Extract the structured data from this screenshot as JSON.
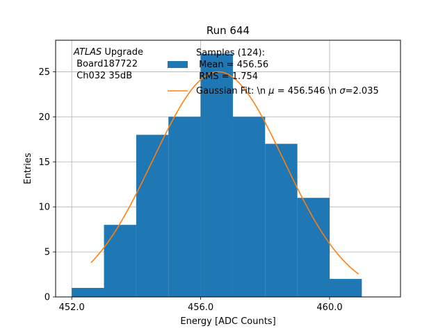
{
  "chart_data": {
    "type": "bar",
    "title": "Run 644",
    "xlabel": "Energy [ADC Counts]",
    "ylabel": "Entries",
    "xlim": [
      451.5,
      462.2
    ],
    "ylim": [
      0,
      28.5
    ],
    "grid": true,
    "xticks": [
      452.0,
      456.0,
      460.0
    ],
    "xtick_labels": [
      "452.0",
      "456.0",
      "460.0"
    ],
    "yticks": [
      0,
      5,
      10,
      15,
      20,
      25
    ],
    "ytick_labels": [
      "0",
      "5",
      "10",
      "15",
      "20",
      "25"
    ],
    "bin_edges": [
      452,
      453,
      454,
      455,
      456,
      457,
      458,
      459,
      460,
      461
    ],
    "values": [
      1,
      8,
      18,
      20,
      27,
      20,
      17,
      11,
      2
    ],
    "hist_color": "#1f77b4",
    "gaussian": {
      "mu": 456.546,
      "sigma": 2.035,
      "amplitude": 25.0,
      "x_range": [
        452.6,
        460.9
      ],
      "color": "#ff7f0e"
    },
    "annotation": {
      "line1_italic": "ATLAS",
      "line1_rest": " Upgrade",
      "line2": " Board187722",
      "line3": " Ch032 35dB"
    },
    "legend": {
      "placement": "top-right",
      "samples_line1": "Samples (124):",
      "samples_line2": " Mean = 456.56",
      "samples_line3": " RMS = 1.754",
      "fit_label_a": "Gaussian Fit: \\n ",
      "fit_mu_symbol": "μ",
      "fit_label_b": " = 456.546 \\n ",
      "fit_sigma_symbol": "σ",
      "fit_label_c": "=2.035"
    }
  }
}
